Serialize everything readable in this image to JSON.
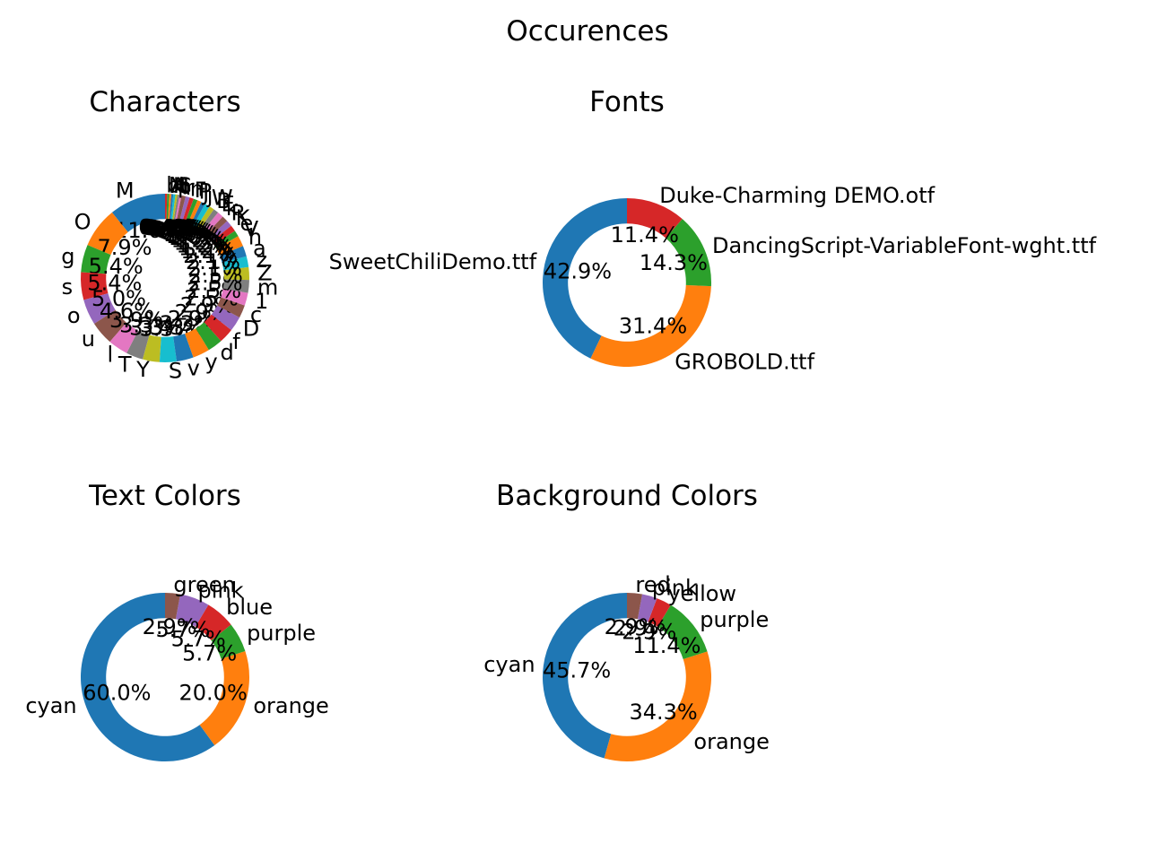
{
  "figure": {
    "suptitle": "Occurences"
  },
  "colors": [
    "#1f77b4",
    "#ff7f0e",
    "#2ca02c",
    "#d62728",
    "#9467bd",
    "#8c564b",
    "#e377c2",
    "#7f7f7f",
    "#bcbd22",
    "#17becf"
  ],
  "chart_data": [
    {
      "type": "pie",
      "style": "donut",
      "title": "Characters",
      "categories": [
        "M",
        "O",
        "g",
        "s",
        "o",
        "u",
        "l",
        "T",
        "Y",
        "S",
        "v",
        "y",
        "d",
        "f",
        "D",
        "c",
        "1",
        "m",
        "Z",
        "z",
        "a",
        "h",
        "V",
        "e",
        "K",
        "R",
        "k",
        "E",
        "B",
        "W",
        "j",
        "J",
        "P",
        "F",
        "n",
        "r",
        "i",
        "t",
        "p",
        "G",
        "H",
        "A",
        "N",
        "b"
      ],
      "values": [
        11.0,
        7.9,
        5.4,
        5.4,
        5.0,
        4.6,
        3.9,
        3.3,
        3.3,
        3.3,
        3.3,
        3.3,
        2.9,
        2.9,
        2.9,
        2.5,
        2.5,
        2.5,
        2.5,
        2.1,
        2.1,
        2.1,
        1.2,
        1.2,
        1.2,
        1.2,
        1.2,
        1.0,
        1.0,
        1.0,
        0.8,
        0.8,
        0.8,
        0.8,
        0.8,
        0.8,
        0.4,
        0.4,
        0.4,
        0.4,
        0.4,
        0.4,
        0.4,
        0.4
      ],
      "percent_labels": [
        "11.0%",
        "7.9%",
        "5.4%",
        "5.4%",
        "5.0%",
        "4.6%",
        "3.9%",
        "3.3%",
        "3.3%",
        "3.3%",
        "3.3%",
        "3.3%",
        "2.9%",
        "2.9%",
        "2.9%",
        "2.5%",
        "2.5%",
        "2.5%",
        "2.5%",
        "2.1%",
        "2.1%",
        "2.1%",
        "1.2%",
        "1.2%",
        "1.2%",
        "1.2%",
        "1.2%",
        "1.0%",
        "1.0%",
        "1.0%",
        "0.8%",
        "0.8%",
        "0.8%",
        "0.8%",
        "0.8%",
        "0.8%",
        "0.4%",
        "0.4%",
        "0.4%",
        "0.4%",
        "0.4%",
        "0.4%",
        "0.4%",
        "0.4%"
      ]
    },
    {
      "type": "pie",
      "style": "donut",
      "title": "Fonts",
      "categories": [
        "SweetChiliDemo.ttf",
        "GROBOLD.ttf",
        "DancingScript-VariableFont-wght.ttf",
        "Duke-Charming DEMO.otf"
      ],
      "values": [
        42.9,
        31.4,
        14.3,
        11.4
      ],
      "percent_labels": [
        "42.9%",
        "31.4%",
        "14.3%",
        "11.4%"
      ]
    },
    {
      "type": "pie",
      "style": "donut",
      "title": "Text Colors",
      "categories": [
        "cyan",
        "orange",
        "purple",
        "blue",
        "pink",
        "green"
      ],
      "values": [
        60.0,
        20.0,
        5.7,
        5.7,
        5.7,
        2.9
      ],
      "percent_labels": [
        "60.0%",
        "20.0%",
        "5.7%",
        "5.7%",
        "5.7%",
        "2.9%"
      ]
    },
    {
      "type": "pie",
      "style": "donut",
      "title": "Background Colors",
      "categories": [
        "cyan",
        "orange",
        "purple",
        "yellow",
        "pink",
        "red"
      ],
      "values": [
        45.7,
        34.3,
        11.4,
        2.9,
        2.9,
        2.9
      ],
      "percent_labels": [
        "45.7%",
        "34.3%",
        "11.4%",
        "2.9%",
        "2.9%",
        "2.9%"
      ]
    }
  ]
}
